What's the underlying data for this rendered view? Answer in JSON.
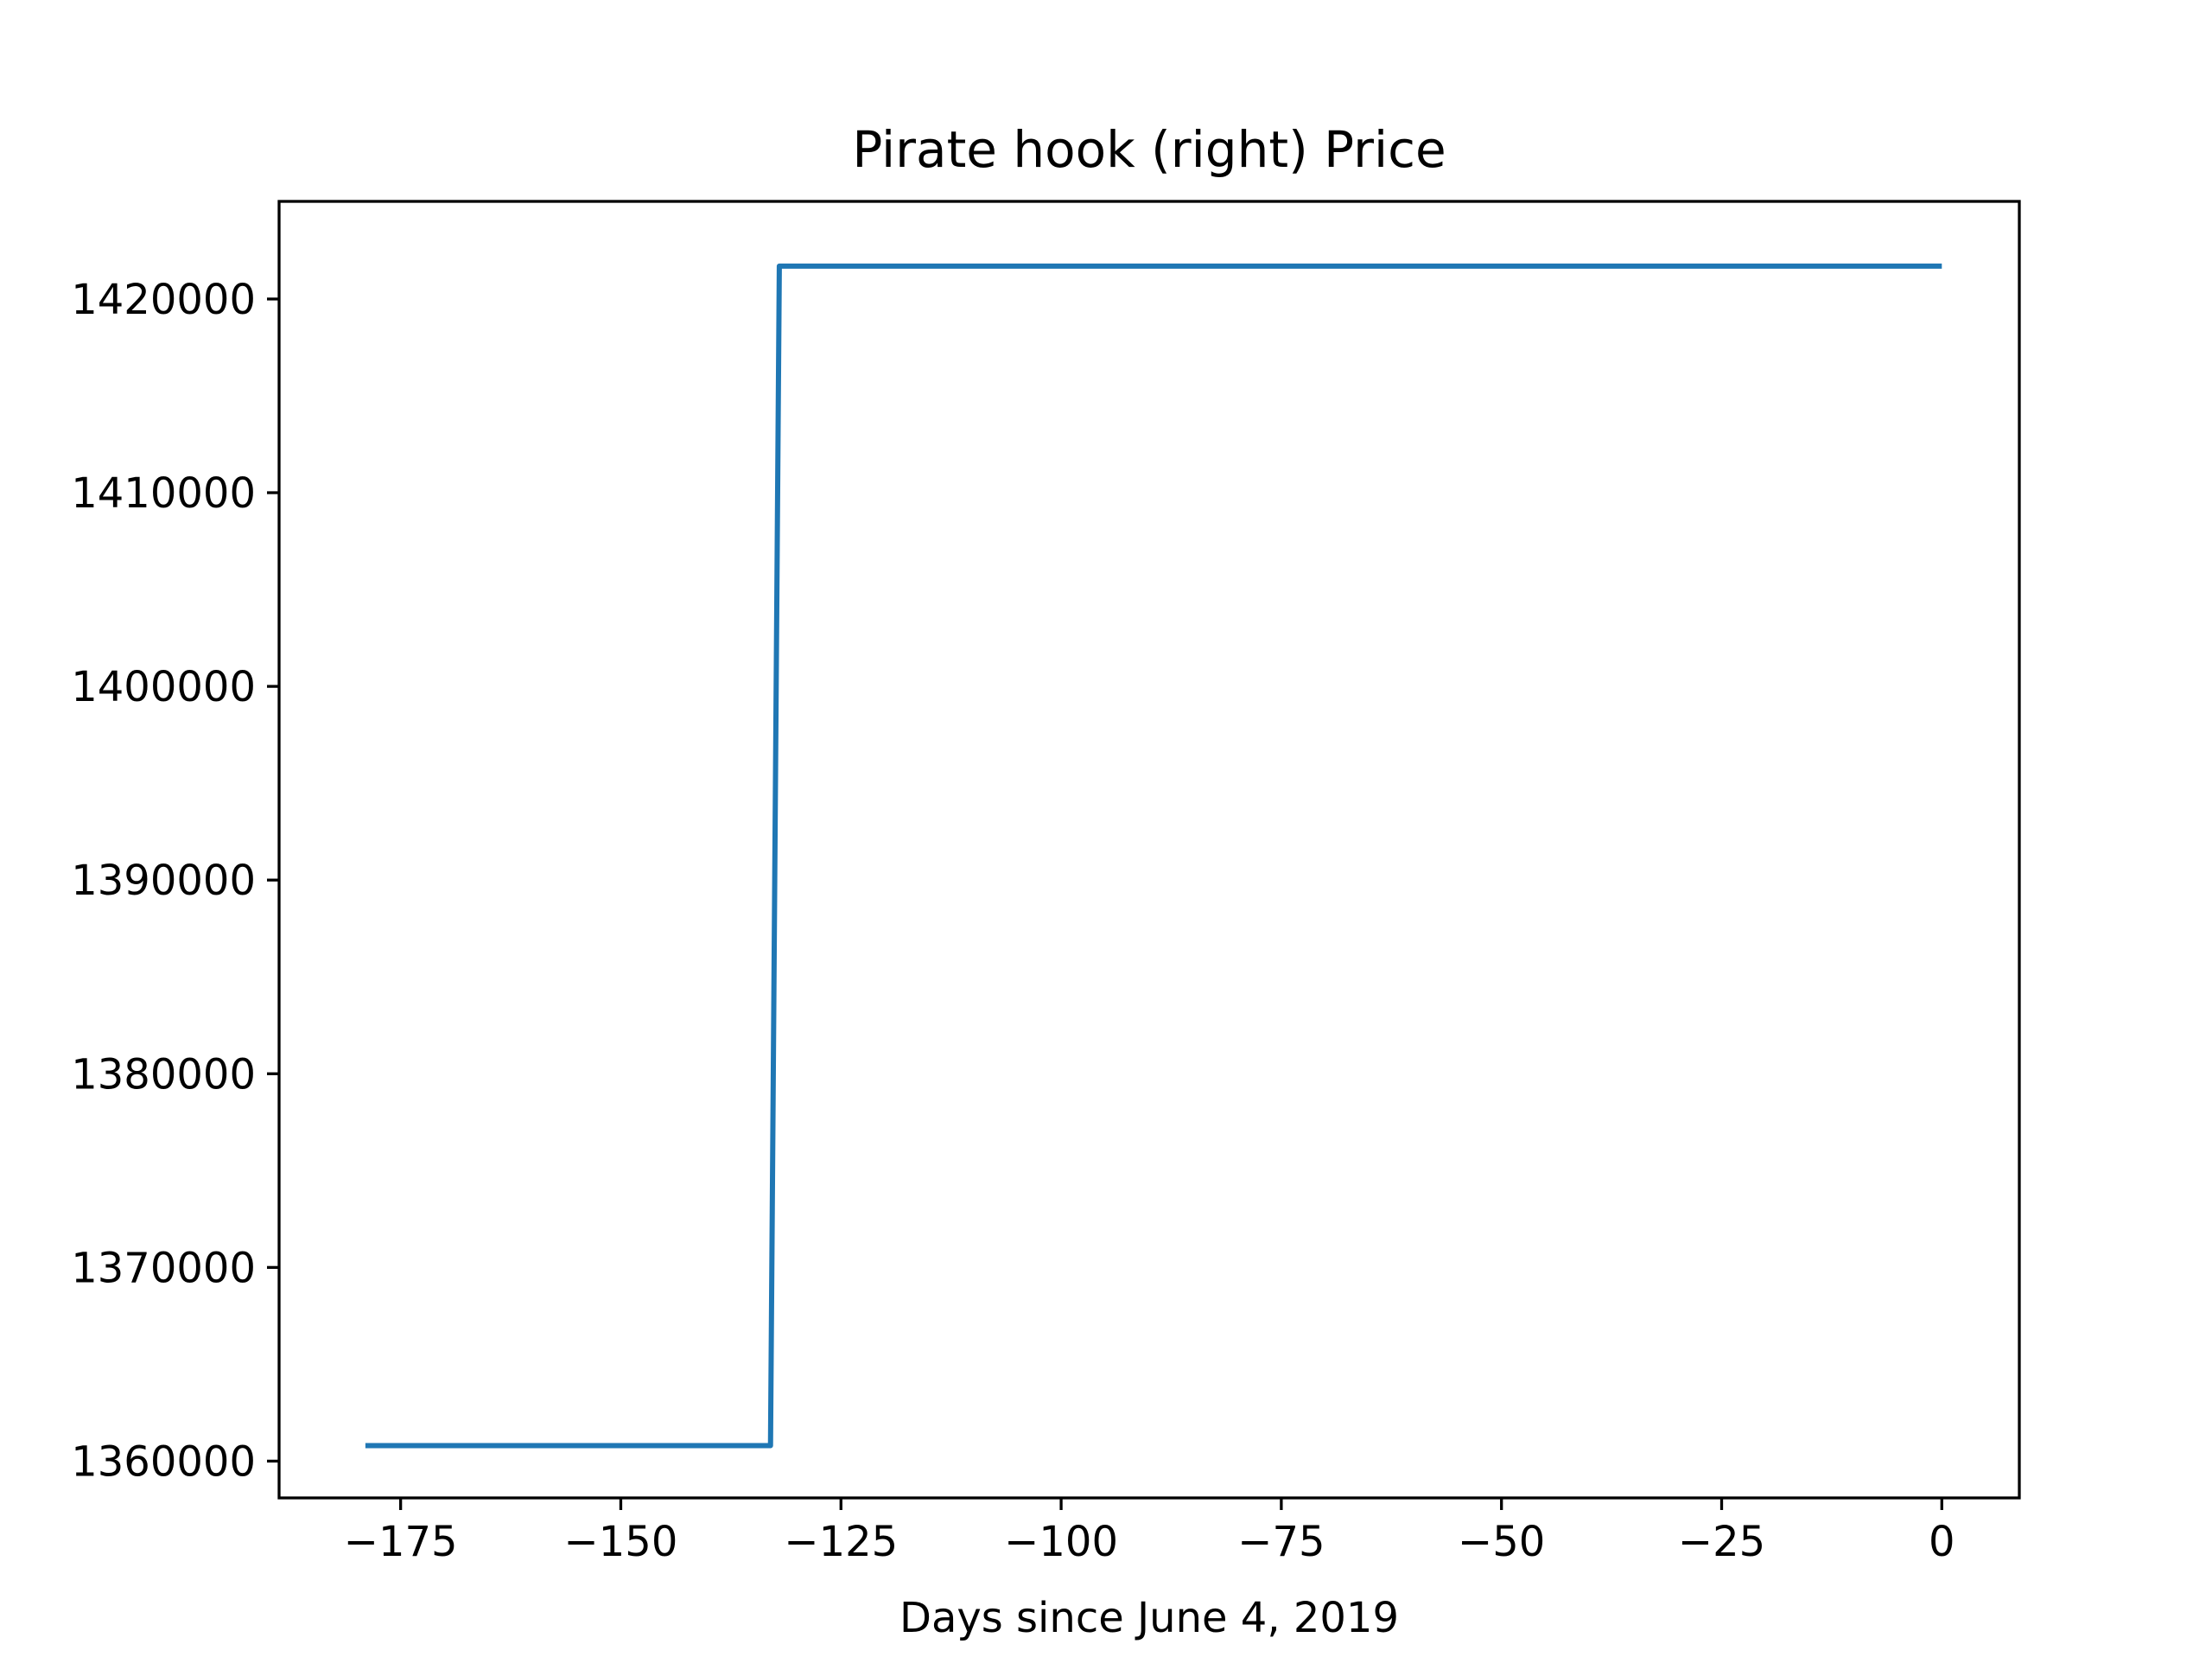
{
  "chart_data": {
    "type": "line",
    "title": "Pirate hook (right) Price",
    "xlabel": "Days since June 4, 2019",
    "ylabel": "",
    "xlim": [
      -188.8,
      8.8
    ],
    "ylim": [
      1358100,
      1425040
    ],
    "x_ticks": [
      -175,
      -150,
      -125,
      -100,
      -75,
      -50,
      -25,
      0
    ],
    "x_tick_labels": [
      "−175",
      "−150",
      "−125",
      "−100",
      "−75",
      "−50",
      "−25",
      "0"
    ],
    "y_ticks": [
      1360000,
      1370000,
      1380000,
      1390000,
      1400000,
      1410000,
      1420000
    ],
    "y_tick_labels": [
      "1360000",
      "1370000",
      "1380000",
      "1390000",
      "1400000",
      "1410000",
      "1420000"
    ],
    "grid": false,
    "legend": "none",
    "series": [
      {
        "color": "#1f77b4",
        "x": [
          -179,
          -133,
          -132,
          0
        ],
        "y": [
          1360800,
          1360800,
          1421700,
          1421700
        ]
      }
    ]
  }
}
